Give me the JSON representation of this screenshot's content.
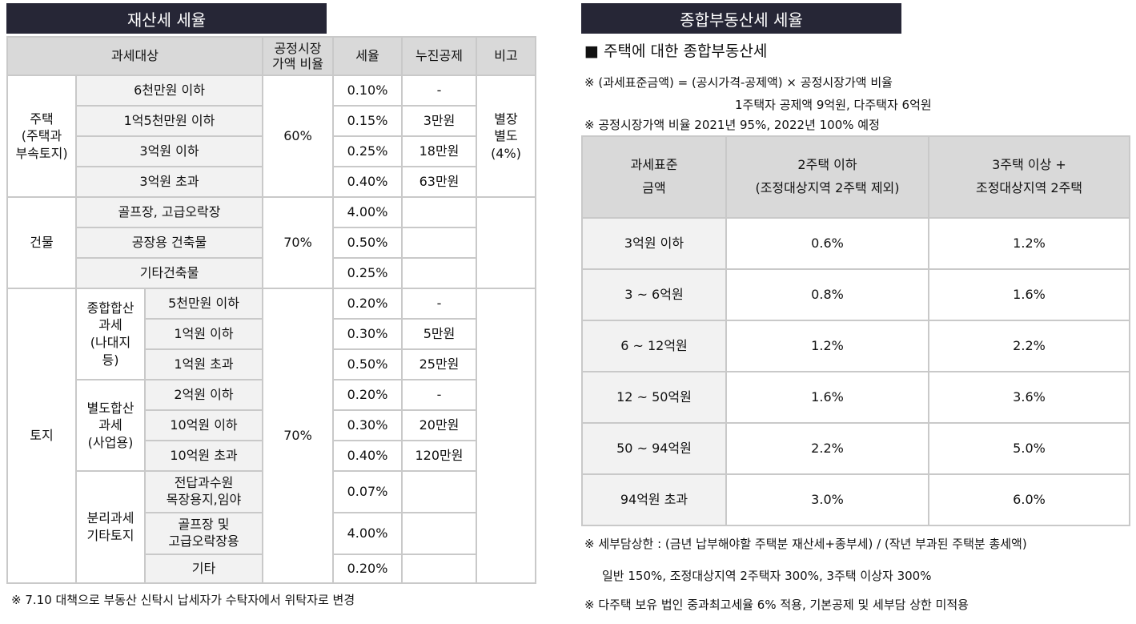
{
  "left": {
    "title": "재산세 세율",
    "headers": {
      "target": "과세대상",
      "ratio": "공정시장\n가액 비율",
      "rate": "세율",
      "deduction": "누진공제",
      "remark": "비고"
    },
    "housing": {
      "group": "주택\n(주택과\n부속토지)",
      "ratio": "60%",
      "remark": "별장\n별도\n(4%)",
      "rows": [
        {
          "label": "6천만원 이하",
          "rate": "0.10%",
          "deduction": "-"
        },
        {
          "label": "1억5천만원 이하",
          "rate": "0.15%",
          "deduction": "3만원"
        },
        {
          "label": "3억원 이하",
          "rate": "0.25%",
          "deduction": "18만원"
        },
        {
          "label": "3억원 초과",
          "rate": "0.40%",
          "deduction": "63만원"
        }
      ]
    },
    "building": {
      "group": "건물",
      "ratio": "70%",
      "rows": [
        {
          "label": "골프장, 고급오락장",
          "rate": "4.00%",
          "deduction": ""
        },
        {
          "label": "공장용 건축물",
          "rate": "0.50%",
          "deduction": ""
        },
        {
          "label": "기타건축물",
          "rate": "0.25%",
          "deduction": ""
        }
      ]
    },
    "land": {
      "group": "토지",
      "ratio": "70%",
      "combined": {
        "sub": "종합합산\n과세\n(나대지\n등)",
        "rows": [
          {
            "label": "5천만원 이하",
            "rate": "0.20%",
            "deduction": "-"
          },
          {
            "label": "1억원 이하",
            "rate": "0.30%",
            "deduction": "5만원"
          },
          {
            "label": "1억원 초과",
            "rate": "0.50%",
            "deduction": "25만원"
          }
        ]
      },
      "separate": {
        "sub": "별도합산\n과세\n(사업용)",
        "rows": [
          {
            "label": "2억원 이하",
            "rate": "0.20%",
            "deduction": "-"
          },
          {
            "label": "10억원 이하",
            "rate": "0.30%",
            "deduction": "20만원"
          },
          {
            "label": "10억원 초과",
            "rate": "0.40%",
            "deduction": "120만원"
          }
        ]
      },
      "isolated": {
        "sub": "분리과세\n기타토지",
        "rows": [
          {
            "label": "전답과수원\n목장용지,임야",
            "rate": "0.07%",
            "deduction": ""
          },
          {
            "label": "골프장 및\n고급오락장용",
            "rate": "4.00%",
            "deduction": ""
          },
          {
            "label": "기타",
            "rate": "0.20%",
            "deduction": ""
          }
        ]
      }
    },
    "footnote": "※ 7.10 대책으로 부동산 신탁시 납세자가 수탁자에서 위탁자로 변경"
  },
  "right": {
    "title": "종합부동산세 세율",
    "heading": "■ 주택에 대한 종합부동산세",
    "note1": "※ (과세표준금액) = (공시가격-공제액) × 공정시장가액 비율",
    "note2": "1주택자 공제액 9억원, 다주택자 6억원",
    "note3": "※ 공정시장가액 비율 2021년 95%, 2022년 100% 예정",
    "headers": {
      "base": "과세표준\n금액",
      "two": "2주택 이하\n(조정대상지역 2주택 제외)",
      "three": "3주택 이상 +\n조정대상지역 2주택"
    },
    "rows": [
      {
        "base": "3억원 이하",
        "two": "0.6%",
        "three": "1.2%"
      },
      {
        "base": "3 ~ 6억원",
        "two": "0.8%",
        "three": "1.6%"
      },
      {
        "base": "6 ~ 12억원",
        "two": "1.2%",
        "three": "2.2%"
      },
      {
        "base": "12 ~ 50억원",
        "two": "1.6%",
        "three": "3.6%"
      },
      {
        "base": "50 ~ 94억원",
        "two": "2.2%",
        "three": "5.0%"
      },
      {
        "base": "94억원 초과",
        "two": "3.0%",
        "three": "6.0%"
      }
    ],
    "foot1": "※ 세부담상한 : (금년 납부해야할 주택분 재산세+종부세) / (작년 부과된 주택분 총세액)",
    "foot2": "일반 150%, 조정대상지역 2주택자 300%, 3주택 이상자 300%",
    "foot3": "※ 다주택 보유 법인 중과최고세율 6% 적용, 기본공제 및 세부담 상한 미적용"
  }
}
